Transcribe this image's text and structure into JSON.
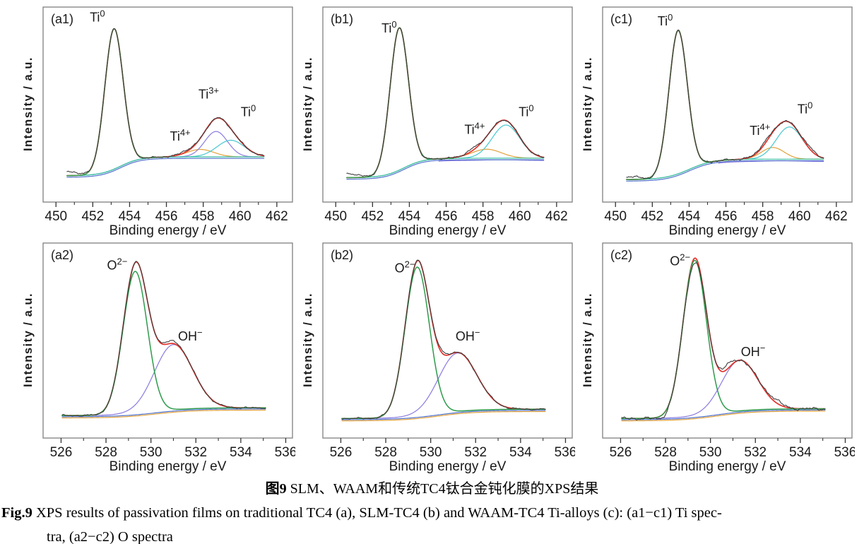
{
  "figure": {
    "caption_zh": {
      "label": "图9",
      "text": " SLM、WAAM和传统TC4钛合金钝化膜的XPS结果"
    },
    "caption_en": {
      "label": "Fig.9",
      "line1": " XPS results of passivation films on traditional TC4 (a), SLM-TC4 (b) and WAAM-TC4 Ti-alloys (c): (a1−c1) Ti spec-",
      "line2": "tra, (a2−c2) O spectra"
    }
  },
  "style": {
    "border_color": "#7f7f7f",
    "text_color": "#1a1a1a",
    "background": "#ffffff",
    "grid": false,
    "legend": "none"
  },
  "chart_data": [
    {
      "id": "a1",
      "panel_tag": "(a1)",
      "type": "line",
      "sample": "traditional TC4",
      "element": "Ti spectra",
      "xlabel": "Binding energy / eV",
      "ylabel": "Intensity / a.u.",
      "xlim": [
        449.3,
        462.85
      ],
      "xticks": [
        450,
        452,
        454,
        456,
        458,
        460,
        462
      ],
      "minor_tick_step": 1,
      "data_xrange": [
        450.6,
        461.3
      ],
      "ylim": [
        0,
        1
      ],
      "yunits": "arbitrary",
      "baseline": {
        "left": 0.135,
        "right": 0.232,
        "center": 453.5,
        "width": 0.55
      },
      "series": [
        {
          "name": "Ti4+ component",
          "color": "#e2a23b",
          "kind": "peak",
          "layer": "under",
          "center": 457.85,
          "height": 0.038,
          "sigma": 0.72
        },
        {
          "name": "Ti3+ component",
          "color": "#8a7be0",
          "kind": "peak",
          "layer": "under",
          "center": 458.7,
          "height": 0.13,
          "sigma": 0.62
        },
        {
          "name": "Ti0 2p1/2 component",
          "color": "#45c8cf",
          "kind": "peak",
          "layer": "under",
          "center": 459.5,
          "height": 0.085,
          "sigma": 0.75
        },
        {
          "name": "fit envelope",
          "color": "#e2332c",
          "kind": "envelope"
        },
        {
          "name": "background 2",
          "color": "#5072cc",
          "kind": "background",
          "offset": -0.008
        },
        {
          "name": "shirley background",
          "color": "#3cc0a5",
          "kind": "background",
          "offset": 0
        },
        {
          "name": "Ti0 2p3/2 component",
          "color": "#2e9b4c",
          "kind": "peak",
          "layer": "over",
          "center": 453.15,
          "height": 0.72,
          "sigma": 0.5,
          "xrange": [
            450.6,
            456.1
          ]
        },
        {
          "name": "raw data",
          "color": "#3d3d3d",
          "kind": "raw",
          "noise": 0.006,
          "seed": 3,
          "bumps": [
            {
              "c": 450.75,
              "h": 0.02,
              "s": 0.5
            },
            {
              "c": 457.0,
              "h": 0.01,
              "s": 0.3
            }
          ]
        }
      ],
      "annotations": [
        {
          "base": "Ti",
          "sup": "0",
          "x": 452.25,
          "y": 0.925
        },
        {
          "base": "Ti",
          "sup": "4+",
          "x": 456.75,
          "y": 0.315
        },
        {
          "base": "Ti",
          "sup": "3+",
          "x": 458.3,
          "y": 0.53
        },
        {
          "base": "Ti",
          "sup": "0",
          "x": 460.45,
          "y": 0.44
        }
      ]
    },
    {
      "id": "b1",
      "panel_tag": "(b1)",
      "type": "line",
      "sample": "SLM-TC4",
      "element": "Ti spectra",
      "xlabel": "Binding energy / eV",
      "ylabel": "Intensity / a.u.",
      "xlim": [
        449.3,
        462.85
      ],
      "xticks": [
        450,
        452,
        454,
        456,
        458,
        460,
        462
      ],
      "minor_tick_step": 1,
      "data_xrange": [
        450.6,
        461.3
      ],
      "ylim": [
        0,
        1
      ],
      "yunits": "arbitrary",
      "baseline": {
        "left": 0.125,
        "right": 0.225,
        "center": 453.7,
        "width": 0.55
      },
      "series": [
        {
          "name": "Ti4+ component",
          "color": "#e2a23b",
          "kind": "peak",
          "layer": "under",
          "center": 458.2,
          "height": 0.046,
          "sigma": 0.8
        },
        {
          "name": "Ti3+ component",
          "color": "#8a7be0",
          "kind": "peak",
          "layer": "under",
          "center": 459.0,
          "height": 0.004,
          "sigma": 1.0,
          "offset": -0.012,
          "xrange": [
            455.6,
            461.3
          ]
        },
        {
          "name": "Ti0 2p1/2 component",
          "color": "#45c8cf",
          "kind": "peak",
          "layer": "under",
          "center": 459.25,
          "height": 0.17,
          "sigma": 0.75
        },
        {
          "name": "fit envelope",
          "color": "#e2332c",
          "kind": "envelope"
        },
        {
          "name": "background 2",
          "color": "#5072cc",
          "kind": "background",
          "offset": -0.008
        },
        {
          "name": "shirley background",
          "color": "#3cc0a5",
          "kind": "background",
          "offset": 0
        },
        {
          "name": "Ti0 2p3/2 component",
          "color": "#2e9b4c",
          "kind": "peak",
          "layer": "over",
          "center": 453.45,
          "height": 0.73,
          "sigma": 0.5,
          "xrange": [
            450.6,
            456.4
          ]
        },
        {
          "name": "raw data",
          "color": "#3d3d3d",
          "kind": "raw",
          "noise": 0.006,
          "seed": 5,
          "bumps": [
            {
              "c": 450.75,
              "h": 0.02,
              "s": 0.5
            },
            {
              "c": 457.4,
              "h": 0.012,
              "s": 0.3
            }
          ]
        }
      ],
      "annotations": [
        {
          "base": "Ti",
          "sup": "0",
          "x": 452.9,
          "y": 0.87
        },
        {
          "base": "Ti",
          "sup": "4+",
          "x": 457.55,
          "y": 0.35
        },
        {
          "base": "Ti",
          "sup": "0",
          "x": 460.35,
          "y": 0.44
        }
      ]
    },
    {
      "id": "c1",
      "panel_tag": "(c1)",
      "type": "line",
      "sample": "WAAM-TC4",
      "element": "Ti spectra",
      "xlabel": "Binding energy / eV",
      "ylabel": "Intensity / a.u.",
      "xlim": [
        449.3,
        462.85
      ],
      "xticks": [
        450,
        452,
        454,
        456,
        458,
        460,
        462
      ],
      "minor_tick_step": 1,
      "data_xrange": [
        450.6,
        461.3
      ],
      "ylim": [
        0,
        1
      ],
      "yunits": "arbitrary",
      "baseline": {
        "left": 0.115,
        "right": 0.22,
        "center": 454.0,
        "width": 0.65
      },
      "series": [
        {
          "name": "Ti4+ component",
          "color": "#e2a23b",
          "kind": "peak",
          "layer": "under",
          "center": 458.55,
          "height": 0.06,
          "sigma": 0.62
        },
        {
          "name": "Ti3+ component",
          "color": "#8a7be0",
          "kind": "peak",
          "layer": "under",
          "center": 459.0,
          "height": 0.004,
          "sigma": 1.0,
          "offset": -0.012,
          "xrange": [
            455.6,
            461.3
          ]
        },
        {
          "name": "Ti0 2p1/2 component",
          "color": "#45c8cf",
          "kind": "peak",
          "layer": "under",
          "center": 459.45,
          "height": 0.165,
          "sigma": 0.72
        },
        {
          "name": "fit envelope",
          "color": "#e2332c",
          "kind": "envelope"
        },
        {
          "name": "background 2",
          "color": "#5072cc",
          "kind": "background",
          "offset": -0.008
        },
        {
          "name": "shirley background",
          "color": "#3cc0a5",
          "kind": "background",
          "offset": 0
        },
        {
          "name": "Ti0 2p3/2 component",
          "color": "#2e9b4c",
          "kind": "peak",
          "layer": "over",
          "center": 453.4,
          "height": 0.735,
          "sigma": 0.5,
          "xrange": [
            450.6,
            456.4
          ]
        },
        {
          "name": "raw data",
          "color": "#3d3d3d",
          "kind": "raw",
          "noise": 0.007,
          "seed": 9,
          "bumps": [
            {
              "c": 450.8,
              "h": 0.015,
              "s": 0.5
            },
            {
              "c": 458.0,
              "h": 0.012,
              "s": 0.35
            },
            {
              "c": 460.5,
              "h": 0.012,
              "s": 0.3
            }
          ]
        }
      ],
      "annotations": [
        {
          "base": "Ti",
          "sup": "0",
          "x": 452.7,
          "y": 0.905
        },
        {
          "base": "Ti",
          "sup": "4+",
          "x": 457.85,
          "y": 0.345
        },
        {
          "base": "Ti",
          "sup": "0",
          "x": 460.3,
          "y": 0.455
        }
      ]
    },
    {
      "id": "a2",
      "panel_tag": "(a2)",
      "type": "line",
      "sample": "traditional TC4",
      "element": "O spectra",
      "xlabel": "Binding energy / eV",
      "ylabel": "Intensity / a.u.",
      "xlim": [
        525.2,
        536.3
      ],
      "xticks": [
        526,
        528,
        530,
        532,
        534,
        536
      ],
      "minor_tick_step": 1,
      "data_xrange": [
        526.05,
        535.1
      ],
      "ylim": [
        0,
        1
      ],
      "yunits": "arbitrary",
      "baseline": {
        "left": 0.115,
        "right": 0.155,
        "center": 530.2,
        "width": 0.8
      },
      "series": [
        {
          "name": "OH- component",
          "color": "#8a7be0",
          "kind": "peak",
          "layer": "under",
          "center": 531.0,
          "height": 0.335,
          "sigma": 0.85
        },
        {
          "name": "fit envelope",
          "color": "#e2332c",
          "kind": "envelope"
        },
        {
          "name": "background 2",
          "color": "#e2a23b",
          "kind": "background",
          "offset": -0.012
        },
        {
          "name": "shirley background",
          "color": "#5072cc",
          "kind": "background",
          "offset": -0.006
        },
        {
          "name": "O2- component",
          "color": "#2e9b4c",
          "kind": "peak",
          "layer": "over",
          "center": 529.3,
          "height": 0.73,
          "sigma": 0.54
        },
        {
          "name": "raw data",
          "color": "#3d3d3d",
          "kind": "raw",
          "noise": 0.006,
          "seed": 7,
          "bumps": [
            {
              "c": 530.9,
              "h": 0.012,
              "s": 0.4
            }
          ]
        }
      ],
      "annotations": [
        {
          "base": "O",
          "sup": "2−",
          "x": 528.5,
          "y": 0.865
        },
        {
          "base": "OH",
          "sup": "−",
          "x": 531.75,
          "y": 0.5
        }
      ]
    },
    {
      "id": "b2",
      "panel_tag": "(b2)",
      "type": "line",
      "sample": "SLM-TC4",
      "element": "O spectra",
      "xlabel": "Binding energy / eV",
      "ylabel": "Intensity / a.u.",
      "xlim": [
        525.2,
        536.3
      ],
      "xticks": [
        526,
        528,
        530,
        532,
        534,
        536
      ],
      "minor_tick_step": 1,
      "data_xrange": [
        526.05,
        535.1
      ],
      "ylim": [
        0,
        1
      ],
      "yunits": "arbitrary",
      "baseline": {
        "left": 0.1,
        "right": 0.148,
        "center": 530.3,
        "width": 0.8
      },
      "series": [
        {
          "name": "OH- component",
          "color": "#8a7be0",
          "kind": "peak",
          "layer": "under",
          "center": 531.2,
          "height": 0.3,
          "sigma": 0.85
        },
        {
          "name": "fit envelope",
          "color": "#e2332c",
          "kind": "envelope"
        },
        {
          "name": "background 2",
          "color": "#e2a23b",
          "kind": "background",
          "offset": -0.012
        },
        {
          "name": "shirley background",
          "color": "#5072cc",
          "kind": "background",
          "offset": -0.006
        },
        {
          "name": "O2- component",
          "color": "#2e9b4c",
          "kind": "peak",
          "layer": "over",
          "center": 529.4,
          "height": 0.765,
          "sigma": 0.54
        },
        {
          "name": "raw data",
          "color": "#3d3d3d",
          "kind": "raw",
          "noise": 0.006,
          "seed": 13,
          "bumps": [
            {
              "c": 530.5,
              "h": 0.012,
              "s": 0.3
            }
          ]
        }
      ],
      "annotations": [
        {
          "base": "O",
          "sup": "2−",
          "x": 528.85,
          "y": 0.85
        },
        {
          "base": "OH",
          "sup": "−",
          "x": 531.65,
          "y": 0.5
        }
      ]
    },
    {
      "id": "c2",
      "panel_tag": "(c2)",
      "type": "line",
      "sample": "WAAM-TC4",
      "element": "O spectra",
      "xlabel": "Binding energy / eV",
      "ylabel": "Intensity / a.u.",
      "xlim": [
        525.2,
        536.3
      ],
      "xticks": [
        526,
        528,
        530,
        532,
        534,
        536
      ],
      "minor_tick_step": 1,
      "data_xrange": [
        526.05,
        535.1
      ],
      "ylim": [
        0,
        1
      ],
      "yunits": "arbitrary",
      "baseline": {
        "left": 0.1,
        "right": 0.15,
        "center": 530.3,
        "width": 0.8
      },
      "series": [
        {
          "name": "OH- component",
          "color": "#8a7be0",
          "kind": "peak",
          "layer": "under",
          "center": 531.3,
          "height": 0.26,
          "sigma": 0.8
        },
        {
          "name": "fit envelope",
          "color": "#e2332c",
          "kind": "envelope"
        },
        {
          "name": "background 2",
          "color": "#e2a23b",
          "kind": "background",
          "offset": -0.012
        },
        {
          "name": "shirley background",
          "color": "#5072cc",
          "kind": "background",
          "offset": -0.006
        },
        {
          "name": "O2- component",
          "color": "#2e9b4c",
          "kind": "peak",
          "layer": "over",
          "center": 529.3,
          "height": 0.8,
          "sigma": 0.52
        },
        {
          "name": "raw data",
          "color": "#3d3d3d",
          "kind": "raw",
          "noise": 0.011,
          "seed": 21,
          "bumps": [
            {
              "c": 530.7,
              "h": 0.022,
              "s": 0.25
            },
            {
              "c": 532.85,
              "h": 0.018,
              "s": 0.3
            },
            {
              "c": 527.9,
              "h": -0.012,
              "s": 0.3
            },
            {
              "c": 529.25,
              "h": -0.025,
              "s": 0.22
            }
          ]
        }
      ],
      "annotations": [
        {
          "base": "O",
          "sup": "2−",
          "x": 528.65,
          "y": 0.885
        },
        {
          "base": "OH",
          "sup": "−",
          "x": 531.9,
          "y": 0.42
        }
      ]
    }
  ]
}
